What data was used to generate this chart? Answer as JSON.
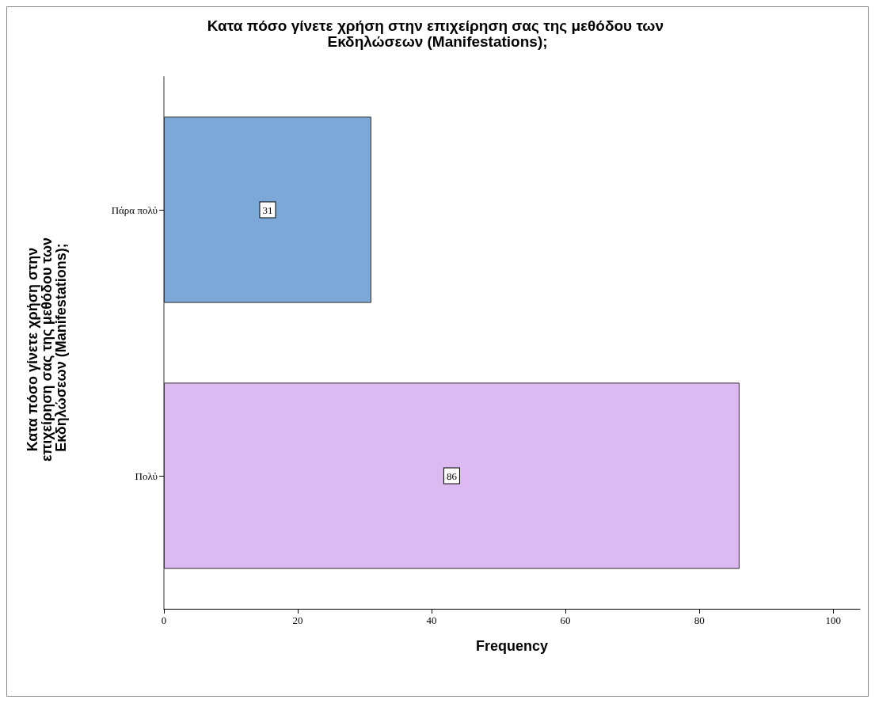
{
  "chart_data": {
    "type": "bar",
    "orientation": "horizontal",
    "title": "Κατα πόσο γίνετε χρήση στην επιχείρηση σας της μεθόδου των Εκδηλώσεων (Manifestations);",
    "xlabel": "Frequency",
    "ylabel": "Κατα πόσο γίνετε χρήση στην επιχείρηση σας της μεθόδου των Εκδηλώσεων (Manifestations);",
    "categories": [
      "Πάρα πολύ",
      "Πολύ"
    ],
    "values": [
      31,
      86
    ],
    "colors": [
      "#7ba8d6",
      "#ddb9f1"
    ],
    "xlim": [
      0,
      104
    ],
    "xticks": [
      0,
      20,
      40,
      60,
      80,
      100
    ],
    "data_labels": true,
    "grid": false
  }
}
